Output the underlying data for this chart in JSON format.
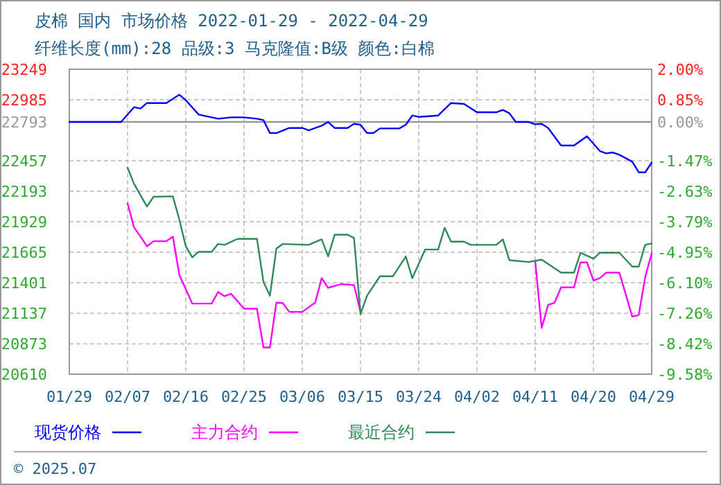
{
  "chart_data": {
    "type": "line",
    "title": "皮棉 国内 市场价格 2022-01-29 - 2022-04-29",
    "subtitle": "纤维长度(mm):28 品级:3 马克隆值:B级 颜色:白棉",
    "annotations": [
      "© 2025.07"
    ],
    "xlim": [
      "2022-01-29",
      "2022-04-29"
    ],
    "xticks": [
      {
        "value": "2022-01-29",
        "label": "01/29"
      },
      {
        "value": "2022-02-07",
        "label": "02/07"
      },
      {
        "value": "2022-02-16",
        "label": "02/16"
      },
      {
        "value": "2022-02-25",
        "label": "02/25"
      },
      {
        "value": "2022-03-06",
        "label": "03/06"
      },
      {
        "value": "2022-03-15",
        "label": "03/15"
      },
      {
        "value": "2022-03-24",
        "label": "03/24"
      },
      {
        "value": "2022-04-02",
        "label": "04/02"
      },
      {
        "value": "2022-04-11",
        "label": "04/11"
      },
      {
        "value": "2022-04-20",
        "label": "04/20"
      },
      {
        "value": "2022-04-29",
        "label": "04/29"
      }
    ],
    "ylim": [
      20610,
      23249
    ],
    "yticks": [
      20610,
      20873,
      21137,
      21401,
      21665,
      21929,
      22193,
      22457,
      22793,
      22985,
      23249
    ],
    "y2lim": [
      -9.58,
      2.0
    ],
    "y2ticks": [
      {
        "value": -9.58,
        "label": "-9.58%"
      },
      {
        "value": -8.42,
        "label": "-8.42%"
      },
      {
        "value": -7.26,
        "label": "-7.26%"
      },
      {
        "value": -6.1,
        "label": "-6.10%"
      },
      {
        "value": -4.95,
        "label": "-4.95%"
      },
      {
        "value": -3.79,
        "label": "-3.79%"
      },
      {
        "value": -2.63,
        "label": "-2.63%"
      },
      {
        "value": -1.47,
        "label": "-1.47%"
      },
      {
        "value": 0,
        "label": "0.00%"
      },
      {
        "value": 0.85,
        "label": "0.85%"
      },
      {
        "value": 2.0,
        "label": "2.00%"
      }
    ],
    "ref_lines": [
      {
        "axis": "y",
        "value": 22793,
        "color": "#999999"
      }
    ],
    "grid": true,
    "legend": "bottom",
    "line_style": "solid",
    "marker": "none",
    "series": [
      {
        "name": "现货价格",
        "color": "#0000ff",
        "x": [
          "2022-01-29",
          "2022-02-06",
          "2022-02-08",
          "2022-02-09",
          "2022-02-10",
          "2022-02-13",
          "2022-02-15",
          "2022-02-16",
          "2022-02-18",
          "2022-02-20",
          "2022-02-21",
          "2022-02-23",
          "2022-02-25",
          "2022-02-27",
          "2022-02-28",
          "2022-03-01",
          "2022-03-02",
          "2022-03-04",
          "2022-03-06",
          "2022-03-07",
          "2022-03-09",
          "2022-03-10",
          "2022-03-11",
          "2022-03-13",
          "2022-03-14",
          "2022-03-15",
          "2022-03-16",
          "2022-03-17",
          "2022-03-18",
          "2022-03-21",
          "2022-03-22",
          "2022-03-23",
          "2022-03-24",
          "2022-03-27",
          "2022-03-29",
          "2022-03-31",
          "2022-04-02",
          "2022-04-05",
          "2022-04-06",
          "2022-04-07",
          "2022-04-08",
          "2022-04-10",
          "2022-04-11",
          "2022-04-12",
          "2022-04-13",
          "2022-04-15",
          "2022-04-17",
          "2022-04-19",
          "2022-04-21",
          "2022-04-22",
          "2022-04-23",
          "2022-04-24",
          "2022-04-26",
          "2022-04-27",
          "2022-04-28",
          "2022-04-29"
        ],
        "values": [
          22793,
          22793,
          22921,
          22909,
          22957,
          22957,
          23029,
          22981,
          22857,
          22833,
          22821,
          22833,
          22833,
          22821,
          22809,
          22697,
          22697,
          22741,
          22741,
          22721,
          22761,
          22793,
          22741,
          22741,
          22777,
          22769,
          22697,
          22697,
          22737,
          22737,
          22769,
          22849,
          22837,
          22849,
          22957,
          22949,
          22877,
          22877,
          22897,
          22869,
          22793,
          22793,
          22773,
          22777,
          22741,
          22589,
          22589,
          22669,
          22541,
          22521,
          22529,
          22509,
          22449,
          22357,
          22357,
          22441
        ]
      },
      {
        "name": "主力合约",
        "color": "#ff00ff",
        "x": [
          "2022-02-07",
          "2022-02-08",
          "2022-02-09",
          "2022-02-10",
          "2022-02-11",
          "2022-02-13",
          "2022-02-14",
          "2022-02-15",
          "2022-02-17",
          "2022-02-20",
          "2022-02-21",
          "2022-02-22",
          "2022-02-23",
          "2022-02-25",
          "2022-02-27",
          "2022-02-28",
          "2022-03-01",
          "2022-03-02",
          "2022-03-03",
          "2022-03-04",
          "2022-03-06",
          "2022-03-08",
          "2022-03-09",
          "2022-03-10",
          "2022-03-12",
          "2022-03-14",
          "2022-03-15",
          "2022-03-27",
          "2022-04-11",
          "2022-04-12",
          "2022-04-13",
          "2022-04-14",
          "2022-04-15",
          "2022-04-17",
          "2022-04-18",
          "2022-04-19",
          "2022-04-20",
          "2022-04-21",
          "2022-04-22",
          "2022-04-24",
          "2022-04-26",
          "2022-04-27",
          "2022-04-28",
          "2022-04-29"
        ],
        "values": [
          22089,
          21881,
          21801,
          21717,
          21761,
          21761,
          21801,
          21469,
          21221,
          21221,
          21321,
          21285,
          21305,
          21177,
          21177,
          20841,
          20841,
          21229,
          21225,
          21149,
          21149,
          21229,
          21441,
          21357,
          21389,
          21381,
          21149,
          null,
          21589,
          21009,
          21209,
          21229,
          21361,
          21361,
          21577,
          21577,
          21421,
          21441,
          21489,
          21489,
          21109,
          21121,
          21449,
          21657
        ]
      },
      {
        "name": "最近合约",
        "color": "#2e8b57",
        "x": [
          "2022-02-07",
          "2022-02-08",
          "2022-02-10",
          "2022-02-11",
          "2022-02-14",
          "2022-02-15",
          "2022-02-16",
          "2022-02-17",
          "2022-02-18",
          "2022-02-20",
          "2022-02-21",
          "2022-02-22",
          "2022-02-24",
          "2022-02-27",
          "2022-02-28",
          "2022-03-01",
          "2022-03-02",
          "2022-03-03",
          "2022-03-07",
          "2022-03-09",
          "2022-03-10",
          "2022-03-11",
          "2022-03-13",
          "2022-03-14",
          "2022-03-15",
          "2022-03-16",
          "2022-03-18",
          "2022-03-20",
          "2022-03-22",
          "2022-03-23",
          "2022-03-25",
          "2022-03-27",
          "2022-03-28",
          "2022-03-29",
          "2022-03-31",
          "2022-04-01",
          "2022-04-05",
          "2022-04-06",
          "2022-04-07",
          "2022-04-10",
          "2022-04-12",
          "2022-04-15",
          "2022-04-17",
          "2022-04-18",
          "2022-04-20",
          "2022-04-21",
          "2022-04-24",
          "2022-04-26",
          "2022-04-27",
          "2022-04-28",
          "2022-04-29"
        ],
        "values": [
          22397,
          22257,
          22061,
          22145,
          22149,
          21949,
          21717,
          21621,
          21669,
          21669,
          21737,
          21729,
          21781,
          21781,
          21409,
          21289,
          21697,
          21737,
          21729,
          21777,
          21629,
          21817,
          21817,
          21789,
          21129,
          21289,
          21457,
          21457,
          21629,
          21441,
          21689,
          21689,
          21877,
          21757,
          21757,
          21729,
          21729,
          21777,
          21597,
          21581,
          21601,
          21489,
          21489,
          21661,
          21609,
          21661,
          21661,
          21541,
          21541,
          21729,
          21741
        ]
      }
    ]
  }
}
